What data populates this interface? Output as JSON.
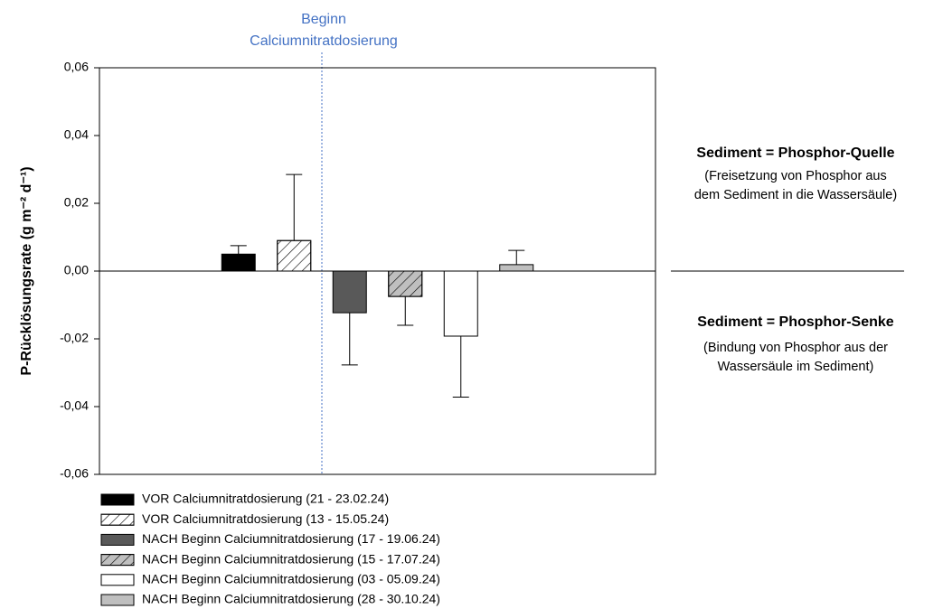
{
  "chart_data": {
    "type": "bar",
    "y_label": "P-Rücklösungsrate (g m⁻² d⁻¹)",
    "ylim": [
      -0.06,
      0.06
    ],
    "yticks": [
      {
        "value": -0.06,
        "label": "-0,06"
      },
      {
        "value": -0.04,
        "label": "-0,04"
      },
      {
        "value": -0.02,
        "label": "-0,02"
      },
      {
        "value": 0,
        "label": "0,00"
      },
      {
        "value": 0.02,
        "label": "0,02"
      },
      {
        "value": 0.04,
        "label": "0,04"
      },
      {
        "value": 0.06,
        "label": "0,06"
      }
    ],
    "series": [
      {
        "name": "VOR Calciumnitratdosierung (21 - 23.02.24)",
        "color": "#000000",
        "pattern": "solid",
        "values": [
          0.005
        ],
        "errors": [
          0.0025
        ]
      },
      {
        "name": "VOR Calciumnitratdosierung (13 - 15.05.24)",
        "color": "#ffffff",
        "pattern": "hatch",
        "values": [
          0.009
        ],
        "errors": [
          0.0195
        ]
      },
      {
        "name": "NACH Beginn Calciumnitratdosierung (17 - 19.06.24)",
        "color": "#595959",
        "pattern": "solid",
        "values": [
          -0.0123
        ],
        "errors": [
          0.0154
        ]
      },
      {
        "name": "NACH Beginn Calciumnitratdosierung (15 - 17.07.24)",
        "color": "#bfbfbf",
        "pattern": "hatch",
        "values": [
          -0.0075
        ],
        "errors": [
          0.0085
        ]
      },
      {
        "name": "NACH Beginn Calciumnitratdosierung (03 - 05.09.24)",
        "color": "#ffffff",
        "pattern": "solid",
        "values": [
          -0.0192
        ],
        "errors": [
          0.018
        ]
      },
      {
        "name": "NACH Beginn Calciumnitratdosierung (28 - 30.10.24)",
        "color": "#bfbfbf",
        "pattern": "solid",
        "values": [
          0.0019
        ],
        "errors": [
          0.0042
        ]
      }
    ],
    "annotations": {
      "start": [
        "Beginn",
        "Calciumnitratdosierung"
      ],
      "source": {
        "title": "Sediment = Phosphor-Quelle",
        "lines": [
          "(Freisetzung von Phosphor aus",
          "dem Sediment in die Wassersäule)"
        ]
      },
      "sink": {
        "title": "Sediment = Phosphor-Senke",
        "lines": [
          "(Bindung von Phosphor aus der",
          "Wassersäule im Sediment)"
        ]
      }
    }
  }
}
